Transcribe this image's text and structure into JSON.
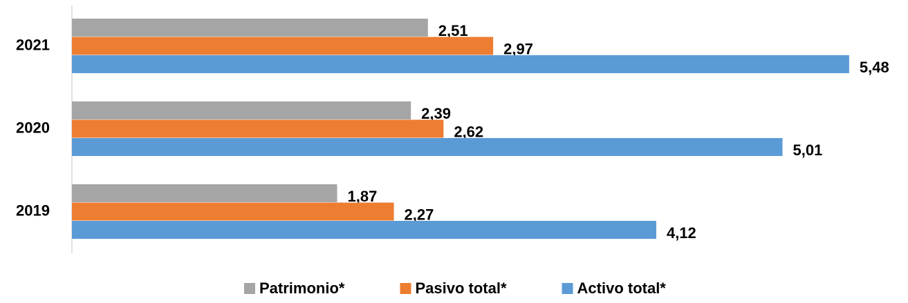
{
  "chart_data": {
    "type": "hbar",
    "categories": [
      "2019",
      "2020",
      "2021"
    ],
    "series": [
      {
        "name": "Patrimonio*",
        "color": "#a5a5a5",
        "values": [
          1.87,
          2.39,
          2.51
        ],
        "value_labels": [
          "1,87",
          "2,39",
          "2,51"
        ]
      },
      {
        "name": "Pasivo total*",
        "color": "#ed7d31",
        "values": [
          2.27,
          2.62,
          2.97
        ],
        "value_labels": [
          "2,27",
          "2,62",
          "2,97"
        ]
      },
      {
        "name": "Activo total*",
        "color": "#5b9bd5",
        "values": [
          4.12,
          5.01,
          5.48
        ],
        "value_labels": [
          "4,12",
          "5,01",
          "5,48"
        ]
      }
    ],
    "xlim": [
      0,
      5.5
    ],
    "legend": "bottom"
  }
}
